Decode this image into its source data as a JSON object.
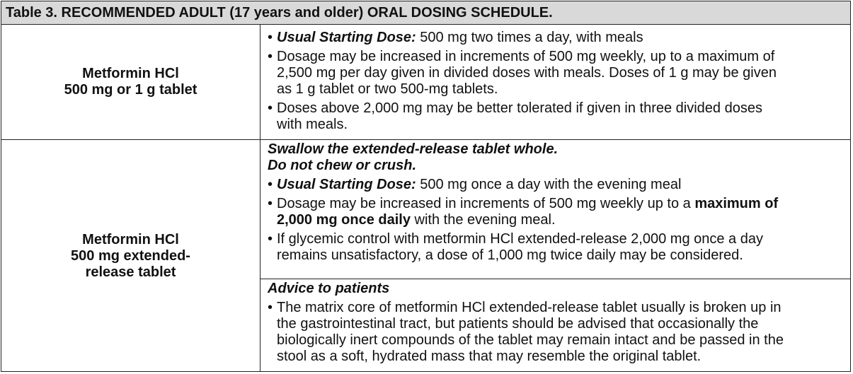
{
  "title": "Table 3. RECOMMENDED ADULT (17 years and older) ORAL DOSING SCHEDULE.",
  "rows": [
    {
      "product": [
        "Metformin HCl",
        "500 mg or 1 g tablet"
      ],
      "blocks": [
        {
          "type": "bullet",
          "lines": [
            [
              {
                "t": "Usual Starting Dose:",
                "s": "bi"
              },
              {
                "t": " 500 mg two times a day, with meals",
                "s": ""
              }
            ]
          ]
        },
        {
          "type": "bullet",
          "lines": [
            [
              {
                "t": "Dosage may be increased in increments of 500 mg weekly, up to a maximum of",
                "s": ""
              }
            ],
            [
              {
                "t": "2,500 mg per day given in divided doses with meals. Doses of 1 g may be given",
                "s": ""
              }
            ],
            [
              {
                "t": "as 1 g tablet or two 500-mg tablets.",
                "s": ""
              }
            ]
          ]
        },
        {
          "type": "bullet",
          "lines": [
            [
              {
                "t": "Doses above 2,000 mg may be better tolerated if given in three divided doses",
                "s": ""
              }
            ],
            [
              {
                "t": "with meals.",
                "s": ""
              }
            ]
          ]
        }
      ]
    },
    {
      "product": [
        "Metformin HCl",
        "500 mg extended-",
        "release tablet"
      ],
      "blocks": [
        {
          "type": "text",
          "lines": [
            [
              {
                "t": "Swallow the extended-release tablet whole.",
                "s": "bi"
              }
            ],
            [
              {
                "t": "Do not chew or crush.",
                "s": "bi"
              }
            ]
          ]
        },
        {
          "type": "bullet",
          "lines": [
            [
              {
                "t": "Usual Starting Dose:",
                "s": "bi"
              },
              {
                "t": " 500 mg once a day with the evening meal",
                "s": ""
              }
            ]
          ]
        },
        {
          "type": "bullet",
          "lines": [
            [
              {
                "t": "Dosage may be increased in increments of 500 mg weekly up to a ",
                "s": ""
              },
              {
                "t": "maximum of",
                "s": "b"
              }
            ],
            [
              {
                "t": "2,000 mg once daily",
                "s": "b"
              },
              {
                "t": " with the evening meal.",
                "s": ""
              }
            ]
          ]
        },
        {
          "type": "bullet",
          "lines": [
            [
              {
                "t": "If glycemic control with metformin HCl extended-release 2,000 mg once a day",
                "s": ""
              }
            ],
            [
              {
                "t": "remains unsatisfactory, a dose of 1,000 mg twice daily may be considered.",
                "s": ""
              }
            ]
          ]
        }
      ],
      "advice_blocks": [
        {
          "type": "text",
          "lines": [
            [
              {
                "t": "Advice to patients",
                "s": "bi"
              }
            ]
          ]
        },
        {
          "type": "bullet",
          "lines": [
            [
              {
                "t": "The matrix core of metformin HCl extended-release tablet usually is broken up in",
                "s": ""
              }
            ],
            [
              {
                "t": "the gastrointestinal tract, but patients should be advised that occasionally the",
                "s": ""
              }
            ],
            [
              {
                "t": "biologically inert compounds of the tablet may remain intact and be passed in the",
                "s": ""
              }
            ],
            [
              {
                "t": "stool as a soft, hydrated mass that may resemble the original tablet.",
                "s": ""
              }
            ]
          ]
        }
      ]
    }
  ]
}
